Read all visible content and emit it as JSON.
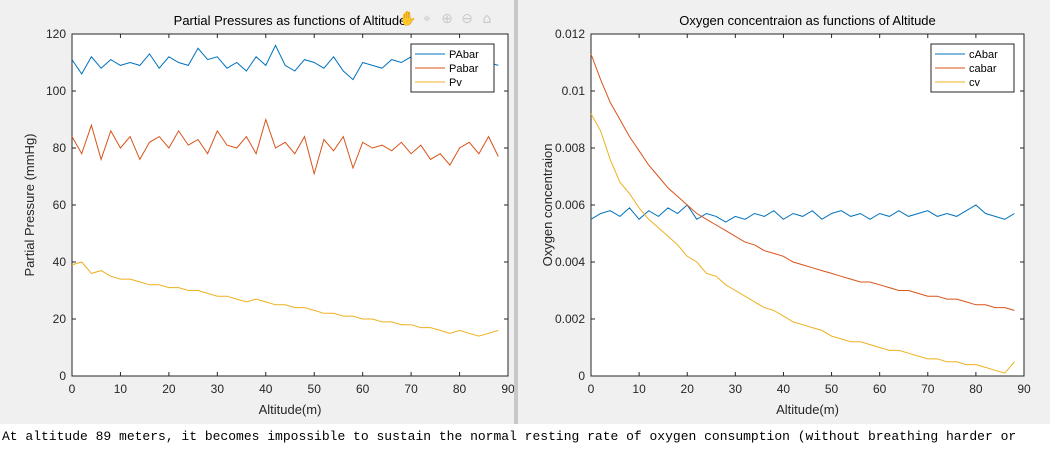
{
  "toolbar": {
    "icons": [
      "pan-icon",
      "data-cursor-icon",
      "zoom-in-icon",
      "zoom-out-icon",
      "home-icon"
    ]
  },
  "console": {
    "text": "At altitude 89 meters, it becomes impossible to sustain the normal resting rate of oxygen consumption (without breathing harder or"
  },
  "colors": {
    "series1": "#0072BD",
    "series2": "#D95319",
    "series3": "#EDB120"
  },
  "chart_data": [
    {
      "type": "line",
      "title": "Partial Pressures as functions of Altitude",
      "xlabel": "Altitude(m)",
      "ylabel": "Partial Pressure (mmHg)",
      "xlim": [
        0,
        90
      ],
      "ylim": [
        0,
        120
      ],
      "xticks": [
        0,
        10,
        20,
        30,
        40,
        50,
        60,
        70,
        80,
        90
      ],
      "yticks": [
        0,
        20,
        40,
        60,
        80,
        100,
        120
      ],
      "grid": false,
      "legend_position": "top-right",
      "series": [
        {
          "name": "PAbar",
          "color": "#0072BD",
          "x": [
            0,
            2,
            4,
            6,
            8,
            10,
            12,
            14,
            16,
            18,
            20,
            22,
            24,
            26,
            28,
            30,
            32,
            34,
            36,
            38,
            40,
            42,
            44,
            46,
            48,
            50,
            52,
            54,
            56,
            58,
            60,
            62,
            64,
            66,
            68,
            70,
            72,
            74,
            76,
            78,
            80,
            82,
            84,
            86,
            88
          ],
          "y": [
            111,
            106,
            112,
            108,
            111,
            109,
            110,
            109,
            113,
            108,
            112,
            110,
            109,
            115,
            111,
            112,
            108,
            110,
            107,
            112,
            109,
            116,
            109,
            107,
            111,
            110,
            108,
            112,
            107,
            104,
            110,
            109,
            108,
            111,
            110,
            112,
            109,
            110,
            111,
            109,
            110,
            111,
            109,
            110,
            109
          ]
        },
        {
          "name": "Pabar",
          "color": "#D95319",
          "x": [
            0,
            2,
            4,
            6,
            8,
            10,
            12,
            14,
            16,
            18,
            20,
            22,
            24,
            26,
            28,
            30,
            32,
            34,
            36,
            38,
            40,
            42,
            44,
            46,
            48,
            50,
            52,
            54,
            56,
            58,
            60,
            62,
            64,
            66,
            68,
            70,
            72,
            74,
            76,
            78,
            80,
            82,
            84,
            86,
            88
          ],
          "y": [
            84,
            78,
            88,
            76,
            86,
            80,
            84,
            76,
            82,
            84,
            80,
            86,
            81,
            83,
            78,
            86,
            81,
            80,
            84,
            78,
            90,
            80,
            82,
            78,
            84,
            71,
            83,
            79,
            84,
            73,
            82,
            80,
            81,
            79,
            82,
            78,
            81,
            76,
            78,
            74,
            80,
            82,
            78,
            84,
            77
          ]
        },
        {
          "name": "Pv",
          "color": "#EDB120",
          "x": [
            0,
            2,
            4,
            6,
            8,
            10,
            12,
            14,
            16,
            18,
            20,
            22,
            24,
            26,
            28,
            30,
            32,
            34,
            36,
            38,
            40,
            42,
            44,
            46,
            48,
            50,
            52,
            54,
            56,
            58,
            60,
            62,
            64,
            66,
            68,
            70,
            72,
            74,
            76,
            78,
            80,
            82,
            84,
            86,
            88
          ],
          "y": [
            39,
            40,
            36,
            37,
            35,
            34,
            34,
            33,
            32,
            32,
            31,
            31,
            30,
            30,
            29,
            28,
            28,
            27,
            26,
            27,
            26,
            25,
            25,
            24,
            24,
            23,
            22,
            22,
            21,
            21,
            20,
            20,
            19,
            19,
            18,
            18,
            17,
            17,
            16,
            15,
            16,
            15,
            14,
            15,
            16
          ]
        }
      ]
    },
    {
      "type": "line",
      "title": "Oxygen concentraion as functions of Altitude",
      "xlabel": "Altitude(m)",
      "ylabel": "Oxygen concentraion",
      "xlim": [
        0,
        90
      ],
      "ylim": [
        0,
        0.012
      ],
      "xticks": [
        0,
        10,
        20,
        30,
        40,
        50,
        60,
        70,
        80,
        90
      ],
      "yticks": [
        "0",
        "0.002",
        "0.004",
        "0.006",
        "0.008",
        "0.01",
        "0.012"
      ],
      "grid": false,
      "legend_position": "top-right",
      "series": [
        {
          "name": "cAbar",
          "color": "#0072BD",
          "x": [
            0,
            2,
            4,
            6,
            8,
            10,
            12,
            14,
            16,
            18,
            20,
            22,
            24,
            26,
            28,
            30,
            32,
            34,
            36,
            38,
            40,
            42,
            44,
            46,
            48,
            50,
            52,
            54,
            56,
            58,
            60,
            62,
            64,
            66,
            68,
            70,
            72,
            74,
            76,
            78,
            80,
            82,
            84,
            86,
            88
          ],
          "y": [
            0.0055,
            0.0057,
            0.0058,
            0.0056,
            0.0059,
            0.0055,
            0.0058,
            0.0056,
            0.0059,
            0.0057,
            0.006,
            0.0055,
            0.0057,
            0.0056,
            0.0054,
            0.0056,
            0.0055,
            0.0057,
            0.0056,
            0.0058,
            0.0055,
            0.0057,
            0.0056,
            0.0058,
            0.0055,
            0.0057,
            0.0058,
            0.0056,
            0.0057,
            0.0055,
            0.0057,
            0.0056,
            0.0058,
            0.0056,
            0.0057,
            0.0058,
            0.0056,
            0.0057,
            0.0056,
            0.0058,
            0.006,
            0.0057,
            0.0056,
            0.0055,
            0.0057
          ]
        },
        {
          "name": "cabar",
          "color": "#D95319",
          "x": [
            0,
            2,
            4,
            6,
            8,
            10,
            12,
            14,
            16,
            18,
            20,
            22,
            24,
            26,
            28,
            30,
            32,
            34,
            36,
            38,
            40,
            42,
            44,
            46,
            48,
            50,
            52,
            54,
            56,
            58,
            60,
            62,
            64,
            66,
            68,
            70,
            72,
            74,
            76,
            78,
            80,
            82,
            84,
            86,
            88
          ],
          "y": [
            0.0113,
            0.0104,
            0.0096,
            0.009,
            0.0084,
            0.0079,
            0.0074,
            0.007,
            0.0066,
            0.0063,
            0.006,
            0.0057,
            0.0055,
            0.0053,
            0.0051,
            0.0049,
            0.0047,
            0.0046,
            0.0044,
            0.0043,
            0.0042,
            0.004,
            0.0039,
            0.0038,
            0.0037,
            0.0036,
            0.0035,
            0.0034,
            0.0033,
            0.0033,
            0.0032,
            0.0031,
            0.003,
            0.003,
            0.0029,
            0.0028,
            0.0028,
            0.0027,
            0.0027,
            0.0026,
            0.0025,
            0.0025,
            0.0024,
            0.0024,
            0.0023
          ]
        },
        {
          "name": "cv",
          "color": "#EDB120",
          "x": [
            0,
            2,
            4,
            6,
            8,
            10,
            12,
            14,
            16,
            18,
            20,
            22,
            24,
            26,
            28,
            30,
            32,
            34,
            36,
            38,
            40,
            42,
            44,
            46,
            48,
            50,
            52,
            54,
            56,
            58,
            60,
            62,
            64,
            66,
            68,
            70,
            72,
            74,
            76,
            78,
            80,
            82,
            84,
            86,
            88
          ],
          "y": [
            0.0092,
            0.0086,
            0.0076,
            0.0068,
            0.0064,
            0.0059,
            0.0055,
            0.0052,
            0.0049,
            0.0046,
            0.0042,
            0.004,
            0.0036,
            0.0035,
            0.0032,
            0.003,
            0.0028,
            0.0026,
            0.0024,
            0.0023,
            0.0021,
            0.0019,
            0.0018,
            0.0017,
            0.0016,
            0.0014,
            0.0013,
            0.0012,
            0.0012,
            0.0011,
            0.001,
            0.0009,
            0.0009,
            0.0008,
            0.0007,
            0.0006,
            0.0006,
            0.0005,
            0.0005,
            0.0004,
            0.0004,
            0.0003,
            0.0002,
            0.0001,
            0.0005
          ]
        }
      ]
    }
  ]
}
